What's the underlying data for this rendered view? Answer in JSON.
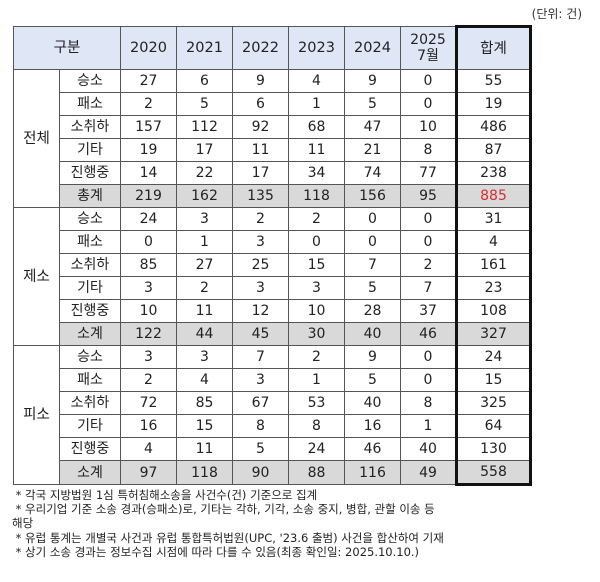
{
  "unit_label": "(단위: 건)",
  "header": {
    "category": "구분",
    "years": [
      "2020",
      "2021",
      "2022",
      "2023",
      "2024"
    ],
    "last_year_top": "2025",
    "last_year_bottom": "7월",
    "total": "합계"
  },
  "groups": [
    {
      "name": "전체",
      "rows": [
        {
          "label": "승소",
          "values": [
            "27",
            "6",
            "9",
            "4",
            "9",
            "0"
          ],
          "total": "55"
        },
        {
          "label": "패소",
          "values": [
            "2",
            "5",
            "6",
            "1",
            "5",
            "0"
          ],
          "total": "19"
        },
        {
          "label": "소취하",
          "values": [
            "157",
            "112",
            "92",
            "68",
            "47",
            "10"
          ],
          "total": "486"
        },
        {
          "label": "기타",
          "values": [
            "19",
            "17",
            "11",
            "11",
            "21",
            "8"
          ],
          "total": "87"
        },
        {
          "label": "진행중",
          "values": [
            "14",
            "22",
            "17",
            "34",
            "74",
            "77"
          ],
          "total": "238"
        },
        {
          "label": "총계",
          "values": [
            "219",
            "162",
            "135",
            "118",
            "156",
            "95"
          ],
          "total": "885",
          "summary": true,
          "total_color": "#d32f2f"
        }
      ]
    },
    {
      "name": "제소",
      "rows": [
        {
          "label": "승소",
          "values": [
            "24",
            "3",
            "2",
            "2",
            "0",
            "0"
          ],
          "total": "31"
        },
        {
          "label": "패소",
          "values": [
            "0",
            "1",
            "3",
            "0",
            "0",
            "0"
          ],
          "total": "4"
        },
        {
          "label": "소취하",
          "values": [
            "85",
            "27",
            "25",
            "15",
            "7",
            "2"
          ],
          "total": "161"
        },
        {
          "label": "기타",
          "values": [
            "3",
            "2",
            "3",
            "3",
            "5",
            "7"
          ],
          "total": "23"
        },
        {
          "label": "진행중",
          "values": [
            "10",
            "11",
            "12",
            "10",
            "28",
            "37"
          ],
          "total": "108"
        },
        {
          "label": "소계",
          "values": [
            "122",
            "44",
            "45",
            "30",
            "40",
            "46"
          ],
          "total": "327",
          "summary": true
        }
      ]
    },
    {
      "name": "피소",
      "rows": [
        {
          "label": "승소",
          "values": [
            "3",
            "3",
            "7",
            "2",
            "9",
            "0"
          ],
          "total": "24"
        },
        {
          "label": "패소",
          "values": [
            "2",
            "4",
            "3",
            "1",
            "5",
            "0"
          ],
          "total": "15"
        },
        {
          "label": "소취하",
          "values": [
            "72",
            "85",
            "67",
            "53",
            "40",
            "8"
          ],
          "total": "325"
        },
        {
          "label": "기타",
          "values": [
            "16",
            "15",
            "8",
            "8",
            "16",
            "1"
          ],
          "total": "64"
        },
        {
          "label": "진행중",
          "values": [
            "4",
            "11",
            "5",
            "24",
            "46",
            "40"
          ],
          "total": "130"
        },
        {
          "label": "소계",
          "values": [
            "97",
            "118",
            "90",
            "88",
            "116",
            "49"
          ],
          "total": "558",
          "summary": true
        }
      ]
    }
  ],
  "notes": [
    " * 각국 지방법원 1심 특허침해소송을 사건수(건) 기준으로 집계",
    " * 우리기업 기준 소송 경과(승패소)로, 기타는 각하, 기각, 소송 중지, 병합, 관할 이송 등\n해당",
    " * 유럽 통계는 개별국 사건과 유럽 통합특허법원(UPC, '23.6 출범) 사건을 합산하여 기재",
    " * 상기 소송 경과는 정보수집 시점에 따라 다를 수 있음(최종 확인일: 2025.10.10.)"
  ],
  "colors": {
    "header_bg": "#dfe6f6",
    "summary_bg": "#d9d9d9",
    "highlight_total": "#d32f2f"
  }
}
